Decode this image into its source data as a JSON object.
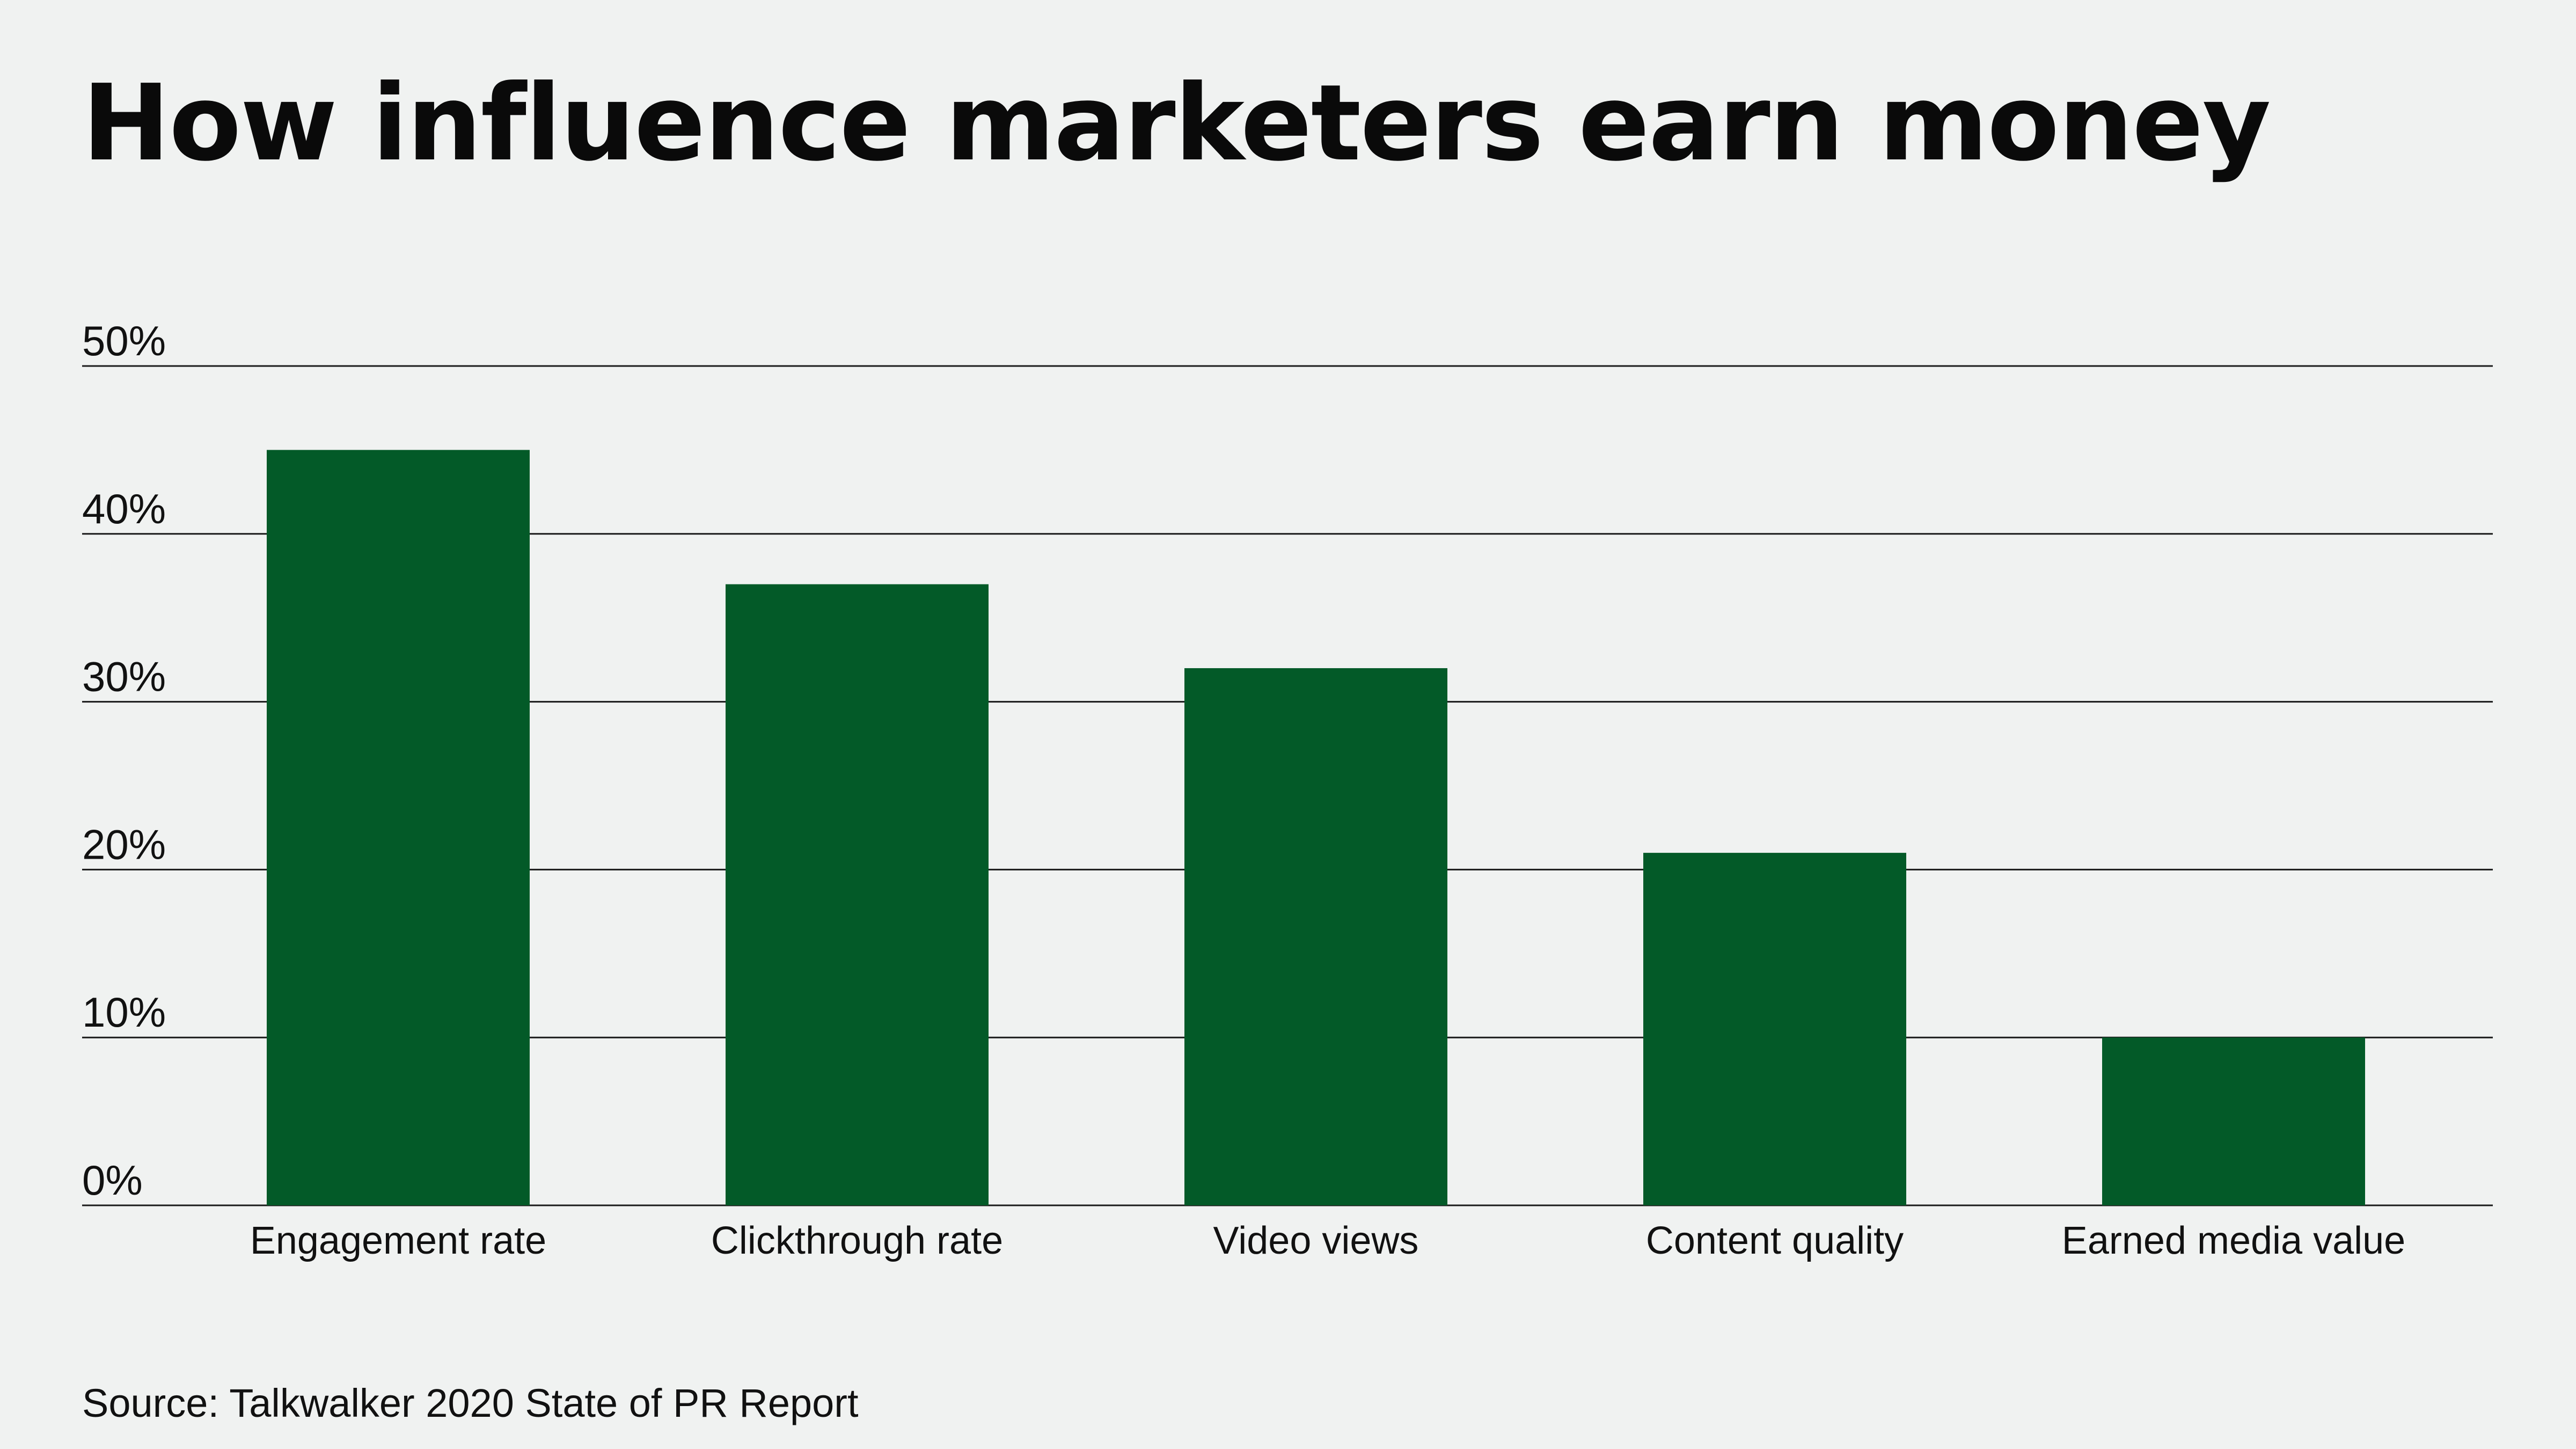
{
  "chart_data": {
    "type": "bar",
    "title": "How influence marketers earn money",
    "categories": [
      "Engagement rate",
      "Clickthrough rate",
      "Video views",
      "Content quality",
      "Earned media value"
    ],
    "values": [
      45,
      37,
      32,
      21,
      10
    ],
    "unit": "%",
    "ylim": [
      0,
      50
    ],
    "yticks": [
      0,
      10,
      20,
      30,
      40,
      50
    ],
    "ytick_labels": [
      "0%",
      "10%",
      "20%",
      "30%",
      "40%",
      "50%"
    ],
    "xlabel": "",
    "ylabel": "",
    "grid": true,
    "legend": "none",
    "bar_color": "#035a28",
    "source": "Source: Talkwalker 2020 State of PR Report"
  }
}
